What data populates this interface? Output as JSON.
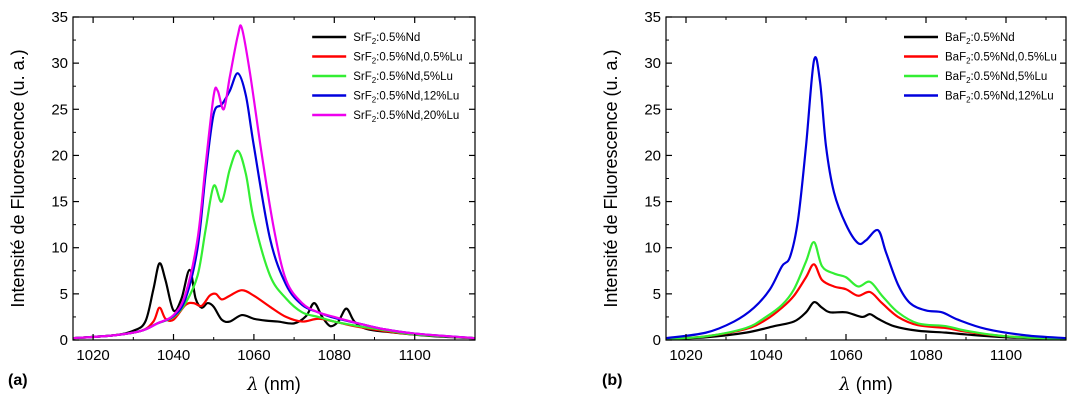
{
  "chart_data": [
    {
      "type": "line",
      "panel_label": "(a)",
      "xlabel_symbol": "λ",
      "xlabel_unit": " (nm)",
      "ylabel": "Intensité de Fluorescence (u. a.)",
      "xlim": [
        1015,
        1115
      ],
      "ylim": [
        0,
        35
      ],
      "xticks": [
        1020,
        1040,
        1060,
        1080,
        1100
      ],
      "yticks": [
        0,
        5,
        10,
        15,
        20,
        25,
        30,
        35
      ],
      "grid": false,
      "legend_position": "top-right",
      "series": [
        {
          "legend_base": "SrF",
          "legend_sub": "2",
          "legend_rest": ":0.5%Nd",
          "color": "#000000",
          "points": [
            [
              1015,
              0.2
            ],
            [
              1025,
              0.5
            ],
            [
              1030,
              1.0
            ],
            [
              1033,
              2.0
            ],
            [
              1035,
              5.5
            ],
            [
              1036.5,
              8.3
            ],
            [
              1038,
              6.5
            ],
            [
              1040,
              3.2
            ],
            [
              1042,
              4.5
            ],
            [
              1044,
              7.6
            ],
            [
              1045.5,
              4.5
            ],
            [
              1047,
              3.5
            ],
            [
              1048.5,
              4.0
            ],
            [
              1050,
              3.6
            ],
            [
              1052,
              2.2
            ],
            [
              1054,
              2.0
            ],
            [
              1057,
              2.7
            ],
            [
              1060,
              2.3
            ],
            [
              1063,
              2.1
            ],
            [
              1066,
              2.0
            ],
            [
              1070,
              1.8
            ],
            [
              1073,
              2.6
            ],
            [
              1075,
              4.0
            ],
            [
              1077,
              2.5
            ],
            [
              1079,
              1.5
            ],
            [
              1081,
              2.0
            ],
            [
              1083,
              3.4
            ],
            [
              1085,
              2.0
            ],
            [
              1088,
              1.2
            ],
            [
              1095,
              0.8
            ],
            [
              1105,
              0.4
            ],
            [
              1115,
              0.2
            ]
          ]
        },
        {
          "legend_base": "SrF",
          "legend_sub": "2",
          "legend_rest": ":0.5%Nd,0.5%Lu",
          "color": "#ff0000",
          "points": [
            [
              1015,
              0.2
            ],
            [
              1025,
              0.5
            ],
            [
              1032,
              1.0
            ],
            [
              1035,
              2.0
            ],
            [
              1036.5,
              3.5
            ],
            [
              1038,
              2.3
            ],
            [
              1040,
              2.2
            ],
            [
              1043,
              3.8
            ],
            [
              1045,
              4.0
            ],
            [
              1047,
              3.7
            ],
            [
              1049,
              4.8
            ],
            [
              1050.5,
              5.0
            ],
            [
              1052,
              4.4
            ],
            [
              1054,
              4.8
            ],
            [
              1057,
              5.4
            ],
            [
              1060,
              4.8
            ],
            [
              1064,
              3.6
            ],
            [
              1068,
              2.5
            ],
            [
              1072,
              2.0
            ],
            [
              1076,
              2.3
            ],
            [
              1080,
              2.0
            ],
            [
              1085,
              1.5
            ],
            [
              1092,
              1.0
            ],
            [
              1100,
              0.6
            ],
            [
              1115,
              0.2
            ]
          ]
        },
        {
          "legend_base": "SrF",
          "legend_sub": "2",
          "legend_rest": ":0.5%Nd,5%Lu",
          "color": "#33ee33",
          "points": [
            [
              1015,
              0.2
            ],
            [
              1025,
              0.5
            ],
            [
              1032,
              1.0
            ],
            [
              1036,
              1.8
            ],
            [
              1040,
              2.5
            ],
            [
              1043,
              4.0
            ],
            [
              1046,
              7.0
            ],
            [
              1048,
              12.0
            ],
            [
              1050,
              16.7
            ],
            [
              1052,
              15.0
            ],
            [
              1054,
              18.5
            ],
            [
              1056,
              20.5
            ],
            [
              1058,
              18.0
            ],
            [
              1060,
              13.0
            ],
            [
              1064,
              7.0
            ],
            [
              1068,
              4.5
            ],
            [
              1072,
              3.0
            ],
            [
              1076,
              2.5
            ],
            [
              1080,
              2.0
            ],
            [
              1086,
              1.5
            ],
            [
              1092,
              1.1
            ],
            [
              1100,
              0.6
            ],
            [
              1115,
              0.2
            ]
          ]
        },
        {
          "legend_base": "SrF",
          "legend_sub": "2",
          "legend_rest": ":0.5%Nd,12%Lu",
          "color": "#0000dd",
          "points": [
            [
              1015,
              0.2
            ],
            [
              1025,
              0.5
            ],
            [
              1032,
              1.0
            ],
            [
              1036,
              1.8
            ],
            [
              1040,
              2.6
            ],
            [
              1043,
              4.5
            ],
            [
              1046,
              10.0
            ],
            [
              1048,
              18.0
            ],
            [
              1050,
              24.5
            ],
            [
              1052,
              25.5
            ],
            [
              1054,
              27.0
            ],
            [
              1056,
              28.9
            ],
            [
              1058,
              26.5
            ],
            [
              1060,
              21.0
            ],
            [
              1064,
              11.0
            ],
            [
              1068,
              6.0
            ],
            [
              1072,
              3.8
            ],
            [
              1076,
              3.0
            ],
            [
              1080,
              2.4
            ],
            [
              1086,
              1.8
            ],
            [
              1092,
              1.2
            ],
            [
              1100,
              0.7
            ],
            [
              1115,
              0.2
            ]
          ]
        },
        {
          "legend_base": "SrF",
          "legend_sub": "2",
          "legend_rest": ":0.5%Nd,20%Lu",
          "color": "#ee00ee",
          "points": [
            [
              1015,
              0.2
            ],
            [
              1025,
              0.5
            ],
            [
              1032,
              1.0
            ],
            [
              1036,
              1.8
            ],
            [
              1040,
              2.7
            ],
            [
              1043,
              5.0
            ],
            [
              1046,
              11.0
            ],
            [
              1048,
              19.0
            ],
            [
              1050,
              26.5
            ],
            [
              1051,
              27.0
            ],
            [
              1052.5,
              25.0
            ],
            [
              1054,
              28.5
            ],
            [
              1056,
              33.0
            ],
            [
              1057,
              33.8
            ],
            [
              1059,
              29.0
            ],
            [
              1062,
              20.0
            ],
            [
              1065,
              12.0
            ],
            [
              1068,
              6.5
            ],
            [
              1072,
              4.0
            ],
            [
              1076,
              3.0
            ],
            [
              1080,
              2.5
            ],
            [
              1086,
              1.8
            ],
            [
              1092,
              1.2
            ],
            [
              1100,
              0.7
            ],
            [
              1115,
              0.2
            ]
          ]
        }
      ]
    },
    {
      "type": "line",
      "panel_label": "(b)",
      "xlabel_symbol": "λ",
      "xlabel_unit": " (nm)",
      "ylabel": "Intensité de Fluorescence (u. a.)",
      "xlim": [
        1015,
        1115
      ],
      "ylim": [
        0,
        35
      ],
      "xticks": [
        1020,
        1040,
        1060,
        1080,
        1100
      ],
      "yticks": [
        0,
        5,
        10,
        15,
        20,
        25,
        30,
        35
      ],
      "grid": false,
      "legend_position": "top-right",
      "series": [
        {
          "legend_base": "BaF",
          "legend_sub": "2",
          "legend_rest": ":0.5%Nd",
          "color": "#000000",
          "points": [
            [
              1015,
              0.1
            ],
            [
              1025,
              0.3
            ],
            [
              1035,
              0.8
            ],
            [
              1042,
              1.5
            ],
            [
              1047,
              2.0
            ],
            [
              1050,
              3.0
            ],
            [
              1052,
              4.1
            ],
            [
              1054,
              3.5
            ],
            [
              1056,
              3.0
            ],
            [
              1060,
              3.0
            ],
            [
              1064,
              2.5
            ],
            [
              1066,
              2.8
            ],
            [
              1068,
              2.3
            ],
            [
              1072,
              1.5
            ],
            [
              1078,
              1.0
            ],
            [
              1085,
              0.8
            ],
            [
              1090,
              0.6
            ],
            [
              1100,
              0.3
            ],
            [
              1115,
              0.1
            ]
          ]
        },
        {
          "legend_base": "BaF",
          "legend_sub": "2",
          "legend_rest": ":0.5%Nd,0.5%Lu",
          "color": "#ff0000",
          "points": [
            [
              1015,
              0.1
            ],
            [
              1025,
              0.4
            ],
            [
              1035,
              1.2
            ],
            [
              1040,
              2.2
            ],
            [
              1044,
              3.5
            ],
            [
              1047,
              4.8
            ],
            [
              1050,
              6.8
            ],
            [
              1052,
              8.2
            ],
            [
              1054,
              6.5
            ],
            [
              1057,
              5.8
            ],
            [
              1060,
              5.5
            ],
            [
              1063,
              4.8
            ],
            [
              1066,
              5.2
            ],
            [
              1069,
              4.0
            ],
            [
              1073,
              2.5
            ],
            [
              1078,
              1.6
            ],
            [
              1085,
              1.3
            ],
            [
              1090,
              0.9
            ],
            [
              1100,
              0.4
            ],
            [
              1115,
              0.1
            ]
          ]
        },
        {
          "legend_base": "BaF",
          "legend_sub": "2",
          "legend_rest": ":0.5%Nd,5%Lu",
          "color": "#33ee33",
          "points": [
            [
              1015,
              0.1
            ],
            [
              1025,
              0.4
            ],
            [
              1035,
              1.3
            ],
            [
              1040,
              2.5
            ],
            [
              1044,
              3.8
            ],
            [
              1047,
              5.5
            ],
            [
              1050,
              8.5
            ],
            [
              1052,
              10.6
            ],
            [
              1054,
              8.0
            ],
            [
              1057,
              7.2
            ],
            [
              1060,
              6.8
            ],
            [
              1063,
              5.8
            ],
            [
              1066,
              6.3
            ],
            [
              1069,
              4.8
            ],
            [
              1073,
              3.0
            ],
            [
              1078,
              1.8
            ],
            [
              1085,
              1.5
            ],
            [
              1090,
              1.0
            ],
            [
              1100,
              0.4
            ],
            [
              1115,
              0.1
            ]
          ]
        },
        {
          "legend_base": "BaF",
          "legend_sub": "2",
          "legend_rest": ":0.5%Nd,12%Lu",
          "color": "#0000dd",
          "points": [
            [
              1015,
              0.2
            ],
            [
              1025,
              0.8
            ],
            [
              1032,
              2.0
            ],
            [
              1037,
              3.5
            ],
            [
              1041,
              5.5
            ],
            [
              1044,
              8.0
            ],
            [
              1046,
              9.0
            ],
            [
              1048,
              13.0
            ],
            [
              1050,
              21.0
            ],
            [
              1052,
              30.3
            ],
            [
              1053.5,
              28.0
            ],
            [
              1055,
              21.0
            ],
            [
              1057,
              16.0
            ],
            [
              1060,
              12.5
            ],
            [
              1063,
              10.5
            ],
            [
              1065,
              10.8
            ],
            [
              1068,
              11.9
            ],
            [
              1070,
              9.5
            ],
            [
              1073,
              6.0
            ],
            [
              1076,
              4.0
            ],
            [
              1080,
              3.2
            ],
            [
              1084,
              3.0
            ],
            [
              1088,
              2.2
            ],
            [
              1095,
              1.2
            ],
            [
              1105,
              0.5
            ],
            [
              1115,
              0.2
            ]
          ]
        }
      ]
    }
  ]
}
